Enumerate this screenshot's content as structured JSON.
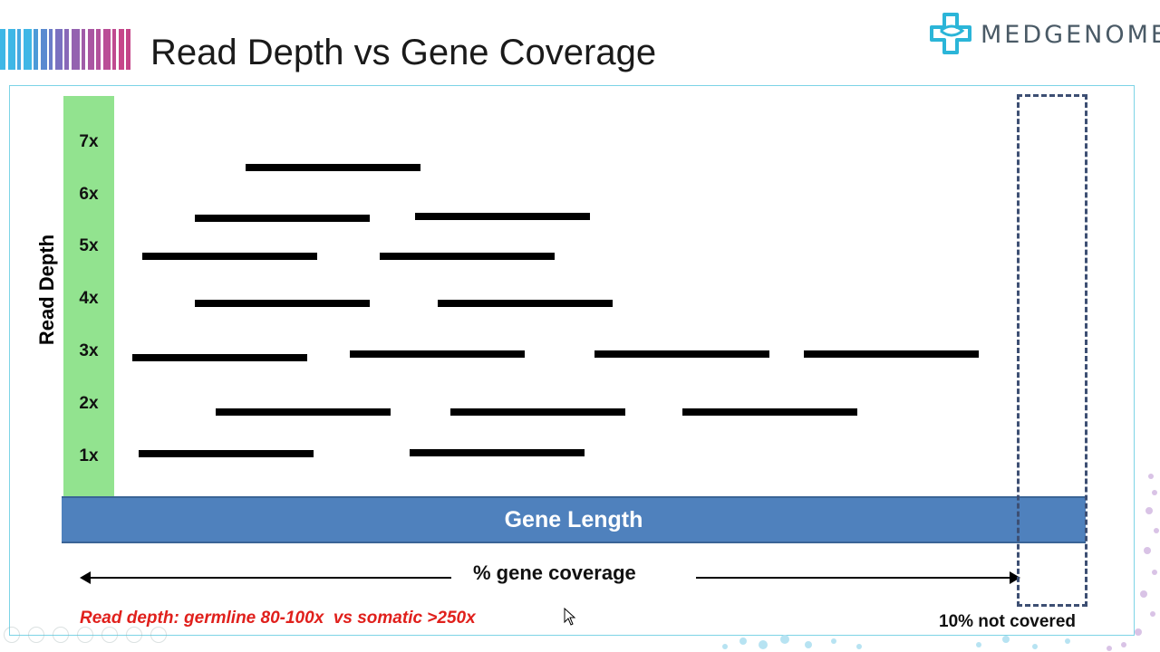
{
  "slide": {
    "title": "Read Depth vs Gene Coverage",
    "logo_text": "MEDGENOME"
  },
  "colors": {
    "depth_column": "#92e38f",
    "gene_bar": "#4f81bd",
    "read": "#000000",
    "dashed_box": "#3d4f73",
    "footnote": "#e0201c",
    "logo": "#2bb5d8"
  },
  "diagram": {
    "y_axis_title": "Read Depth",
    "depth_ticks": [
      "7x",
      "6x",
      "5x",
      "4x",
      "3x",
      "2x",
      "1x"
    ],
    "gene_label": "Gene Length",
    "coverage_label": "% gene coverage",
    "uncovered_label": "10% not covered",
    "footnote": "Read depth: germline 80-100x  vs somatic >250x",
    "reads": [
      {
        "depth": 7,
        "count": 1
      },
      {
        "depth": 6,
        "count": 2
      },
      {
        "depth": 5,
        "count": 2
      },
      {
        "depth": 4,
        "count": 2
      },
      {
        "depth": 3,
        "count": 4
      },
      {
        "depth": 2,
        "count": 3
      },
      {
        "depth": 1,
        "count": 2
      }
    ]
  },
  "icons": [
    "logo-cross-icon",
    "cursor-pointer-icon"
  ]
}
